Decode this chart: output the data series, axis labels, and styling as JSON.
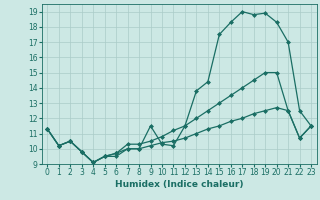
{
  "xlabel": "Humidex (Indice chaleur)",
  "ylabel": "",
  "xlim": [
    -0.5,
    23.5
  ],
  "ylim": [
    9,
    19.5
  ],
  "yticks": [
    9,
    10,
    11,
    12,
    13,
    14,
    15,
    16,
    17,
    18,
    19
  ],
  "xticks": [
    0,
    1,
    2,
    3,
    4,
    5,
    6,
    7,
    8,
    9,
    10,
    11,
    12,
    13,
    14,
    15,
    16,
    17,
    18,
    19,
    20,
    21,
    22,
    23
  ],
  "bg_color": "#cce8e4",
  "grid_color": "#aaccc8",
  "line_color": "#1a6e64",
  "line1_y": [
    11.3,
    10.2,
    10.5,
    9.8,
    9.1,
    9.5,
    9.5,
    10.0,
    10.0,
    11.5,
    10.3,
    10.2,
    11.5,
    13.8,
    14.4,
    17.5,
    18.3,
    19.0,
    18.8,
    18.9,
    18.3,
    17.0,
    12.5,
    11.5
  ],
  "line2_y": [
    11.3,
    10.2,
    10.5,
    9.8,
    9.1,
    9.5,
    9.7,
    10.3,
    10.3,
    10.5,
    10.8,
    11.2,
    11.5,
    12.0,
    12.5,
    13.0,
    13.5,
    14.0,
    14.5,
    15.0,
    15.0,
    12.5,
    10.7,
    11.5
  ],
  "line3_y": [
    11.3,
    10.2,
    10.5,
    9.8,
    9.1,
    9.5,
    9.7,
    10.0,
    10.0,
    10.2,
    10.4,
    10.5,
    10.7,
    11.0,
    11.3,
    11.5,
    11.8,
    12.0,
    12.3,
    12.5,
    12.7,
    12.5,
    10.7,
    11.5
  ],
  "x": [
    0,
    1,
    2,
    3,
    4,
    5,
    6,
    7,
    8,
    9,
    10,
    11,
    12,
    13,
    14,
    15,
    16,
    17,
    18,
    19,
    20,
    21,
    22,
    23
  ],
  "marker": "D",
  "markersize": 2,
  "linewidth": 0.9,
  "tick_fontsize": 5.5,
  "xlabel_fontsize": 6.5
}
